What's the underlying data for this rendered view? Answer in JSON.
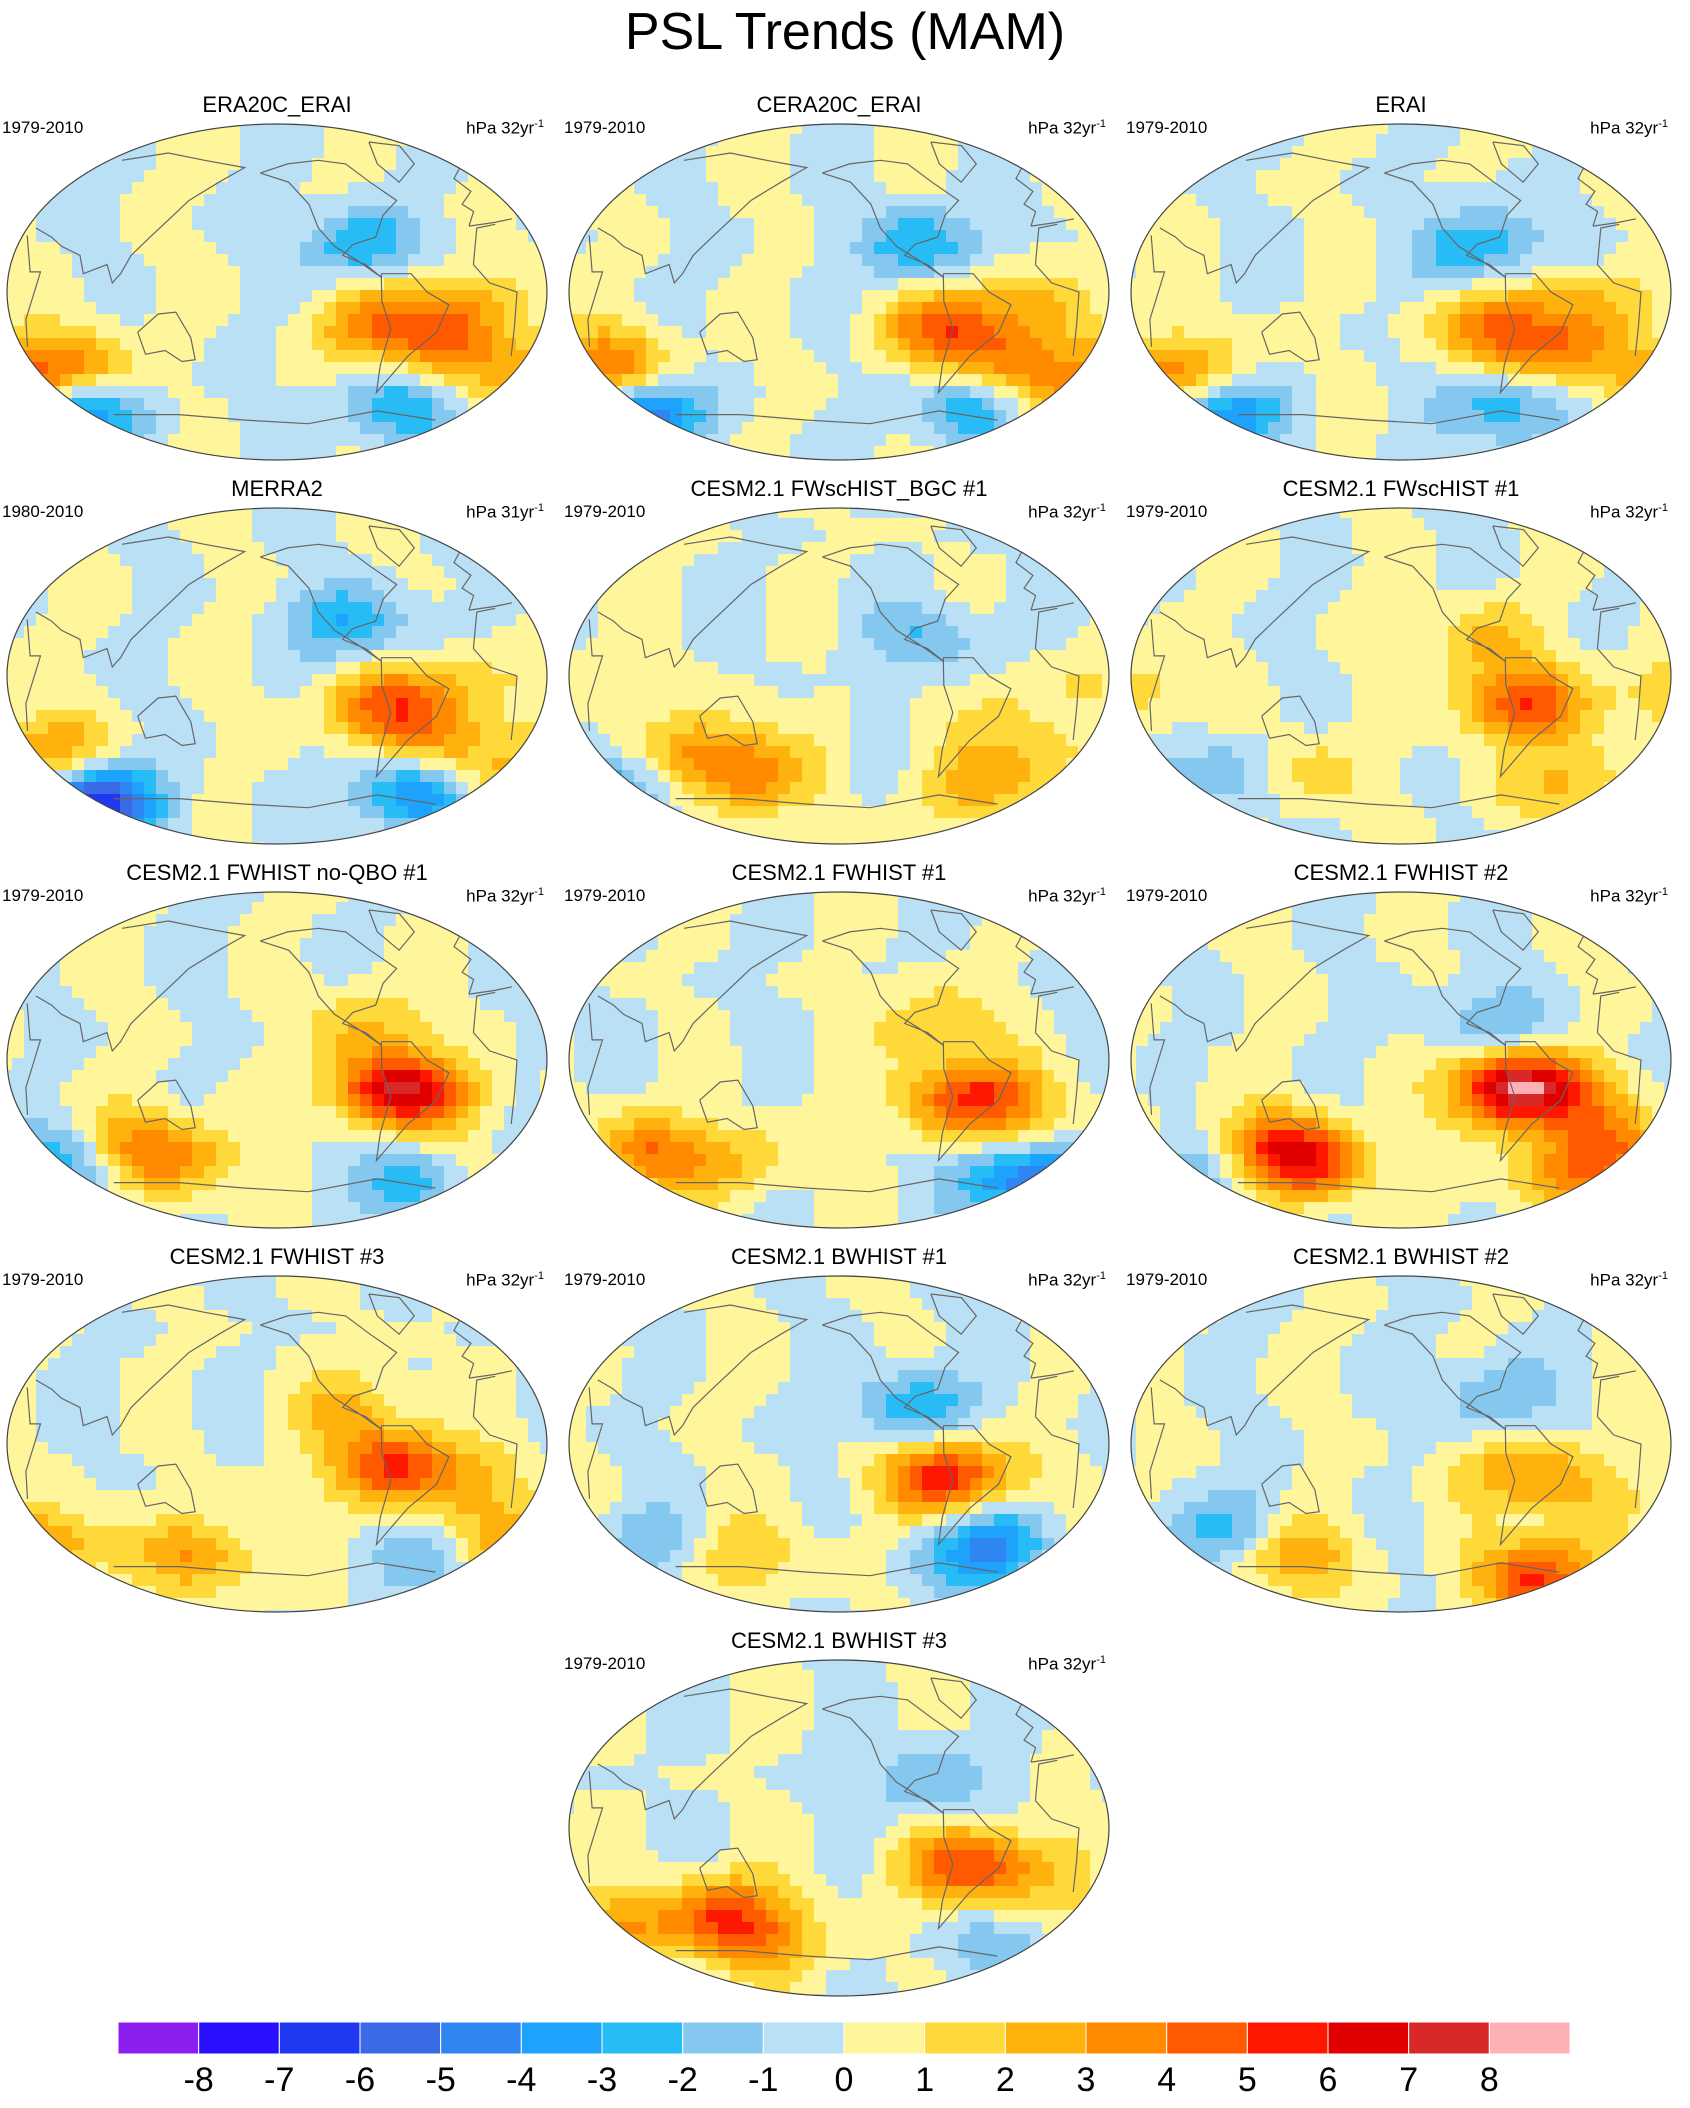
{
  "title": "PSL Trends (MAM)",
  "chart_data": [
    {
      "type": "heatmap",
      "title": "ERA20C_ERAI",
      "period": "1979-2010",
      "units": "hPa 32yr",
      "units_exp": "-1",
      "pattern": [
        [
          -95,
          25,
          -3
        ],
        [
          -35,
          -8,
          3
        ],
        [
          -85,
          -18,
          3
        ],
        [
          -40,
          -32,
          3
        ],
        [
          70,
          -40,
          4
        ],
        [
          30,
          -50,
          2.5
        ],
        [
          -70,
          -62,
          -3
        ],
        [
          80,
          -65,
          -4
        ]
      ]
    },
    {
      "type": "heatmap",
      "title": "CERA20C_ERAI",
      "period": "1979-2010",
      "units": "hPa 32yr",
      "units_exp": "-1",
      "pattern": [
        [
          -95,
          25,
          -3
        ],
        [
          -30,
          -5,
          2
        ],
        [
          -80,
          -20,
          4
        ],
        [
          -40,
          -35,
          3
        ],
        [
          60,
          -40,
          4
        ],
        [
          0,
          -55,
          3
        ],
        [
          -60,
          -62,
          -3
        ],
        [
          80,
          -65,
          -5
        ]
      ]
    },
    {
      "type": "heatmap",
      "title": "ERAI",
      "period": "1979-2010",
      "units": "hPa 32yr",
      "units_exp": "-1",
      "pattern": [
        [
          -95,
          25,
          -3
        ],
        [
          -25,
          -5,
          2
        ],
        [
          -85,
          -20,
          4
        ],
        [
          -40,
          -33,
          3
        ],
        [
          70,
          -42,
          3
        ],
        [
          20,
          -50,
          2
        ],
        [
          -80,
          -62,
          -3
        ],
        [
          90,
          -65,
          -4
        ]
      ]
    },
    {
      "type": "heatmap",
      "title": "MERRA2",
      "period": "1980-2010",
      "units": "hPa 31yr",
      "units_exp": "-1",
      "pattern": [
        [
          -100,
          28,
          -3
        ],
        [
          -35,
          -5,
          2
        ],
        [
          -80,
          -18,
          4
        ],
        [
          -40,
          -35,
          2
        ],
        [
          60,
          -40,
          3
        ],
        [
          0,
          -55,
          2
        ],
        [
          -60,
          -63,
          -4
        ],
        [
          90,
          -68,
          -7
        ]
      ]
    },
    {
      "type": "heatmap",
      "title": "CESM2.1 FWscHIST_BGC #1",
      "period": "1979-2010",
      "units": "hPa 32yr",
      "units_exp": "-1",
      "pattern": [
        [
          -90,
          20,
          -2
        ],
        [
          20,
          -5,
          1
        ],
        [
          -50,
          -20,
          1
        ],
        [
          -15,
          -45,
          2
        ],
        [
          120,
          -40,
          3
        ],
        [
          60,
          -60,
          -3
        ],
        [
          -60,
          -60,
          2
        ],
        [
          150,
          -55,
          3
        ]
      ]
    },
    {
      "type": "heatmap",
      "title": "CESM2.1 FWscHIST #1",
      "period": "1979-2010",
      "units": "hPa 32yr",
      "units_exp": "-1",
      "pattern": [
        [
          -95,
          20,
          2
        ],
        [
          30,
          -10,
          2
        ],
        [
          -70,
          -15,
          5
        ],
        [
          -20,
          -55,
          2
        ],
        [
          100,
          -50,
          -2
        ],
        [
          30,
          -60,
          -2
        ],
        [
          -60,
          -62,
          1
        ],
        [
          140,
          -50,
          2
        ]
      ]
    },
    {
      "type": "heatmap",
      "title": "CESM2.1 FWHIST no-QBO #1",
      "period": "1979-2010",
      "units": "hPa 32yr",
      "units_exp": "-1",
      "pattern": [
        [
          -90,
          20,
          2
        ],
        [
          -40,
          -20,
          2
        ],
        [
          -75,
          -15,
          6
        ],
        [
          -30,
          -60,
          1
        ],
        [
          120,
          -45,
          3
        ],
        [
          60,
          -55,
          -3
        ],
        [
          -60,
          -65,
          -3
        ],
        [
          150,
          -55,
          2
        ]
      ]
    },
    {
      "type": "heatmap",
      "title": "CESM2.1 FWHIST #1",
      "period": "1979-2010",
      "units": "hPa 32yr",
      "units_exp": "-1",
      "pattern": [
        [
          -85,
          20,
          2
        ],
        [
          -40,
          -20,
          2
        ],
        [
          -70,
          -20,
          4
        ],
        [
          -20,
          -45,
          2
        ],
        [
          80,
          -50,
          4
        ],
        [
          20,
          -60,
          -3
        ],
        [
          -30,
          -62,
          -5
        ],
        [
          140,
          -55,
          2
        ]
      ]
    },
    {
      "type": "heatmap",
      "title": "CESM2.1 FWHIST #2",
      "period": "1979-2010",
      "units": "hPa 32yr",
      "units_exp": "-1",
      "pattern": [
        [
          -90,
          20,
          -2
        ],
        [
          -30,
          -20,
          2
        ],
        [
          -75,
          -15,
          8
        ],
        [
          -10,
          -45,
          3
        ],
        [
          120,
          -45,
          3
        ],
        [
          70,
          -60,
          -2
        ],
        [
          -40,
          -62,
          3
        ],
        [
          150,
          -55,
          5
        ]
      ]
    },
    {
      "type": "heatmap",
      "title": "CESM2.1 FWHIST #3",
      "period": "1979-2010",
      "units": "hPa 32yr",
      "units_exp": "-1",
      "pattern": [
        [
          -100,
          20,
          2
        ],
        [
          -20,
          -20,
          2
        ],
        [
          -75,
          -12,
          5
        ],
        [
          -10,
          -50,
          1
        ],
        [
          60,
          -55,
          3
        ],
        [
          10,
          -58,
          2
        ],
        [
          -40,
          -62,
          -2
        ],
        [
          160,
          -60,
          3
        ]
      ]
    },
    {
      "type": "heatmap",
      "title": "CESM2.1 BWHIST #1",
      "period": "1979-2010",
      "units": "hPa 32yr",
      "units_exp": "-1",
      "pattern": [
        [
          -100,
          20,
          -3
        ],
        [
          -60,
          -15,
          2
        ],
        [
          -85,
          -18,
          4
        ],
        [
          -40,
          -55,
          -3
        ],
        [
          80,
          -55,
          -2
        ],
        [
          20,
          -65,
          2
        ],
        [
          -60,
          -60,
          -2
        ],
        [
          150,
          -60,
          2
        ]
      ]
    },
    {
      "type": "heatmap",
      "title": "CESM2.1 BWHIST #2",
      "period": "1979-2010",
      "units": "hPa 32yr",
      "units_exp": "-1",
      "pattern": [
        [
          -90,
          25,
          -2
        ],
        [
          -40,
          -20,
          2
        ],
        [
          -80,
          -15,
          2
        ],
        [
          -20,
          -50,
          1
        ],
        [
          100,
          -45,
          -2
        ],
        [
          40,
          -60,
          -2
        ],
        [
          -60,
          -72,
          5
        ],
        [
          140,
          -60,
          3
        ]
      ]
    },
    {
      "type": "heatmap",
      "title": "CESM2.1 BWHIST #3",
      "period": "1979-2010",
      "units": "hPa 32yr",
      "units_exp": "-1",
      "pattern": [
        [
          -90,
          25,
          -2
        ],
        [
          -40,
          -20,
          3
        ],
        [
          -75,
          -20,
          3
        ],
        [
          -20,
          -45,
          1
        ],
        [
          130,
          -45,
          4
        ],
        [
          60,
          -55,
          3
        ],
        [
          -40,
          -60,
          -2
        ],
        [
          160,
          -60,
          3
        ]
      ]
    }
  ],
  "colorbar": {
    "labels": [
      "-8",
      "-7",
      "-6",
      "-5",
      "-4",
      "-3",
      "-2",
      "-1",
      "0",
      "1",
      "2",
      "3",
      "4",
      "5",
      "6",
      "7",
      "8"
    ],
    "levels": [
      -8,
      -7,
      -6,
      -5,
      -4,
      -3,
      -2,
      -1,
      0,
      1,
      2,
      3,
      4,
      5,
      6,
      7,
      8
    ],
    "colors": [
      "#8c1ef0",
      "#2a10ff",
      "#2038f0",
      "#3a6ae6",
      "#2f86f2",
      "#1ea3fc",
      "#28bcf6",
      "#84c8ef",
      "#b9e0f5",
      "#fff59b",
      "#ffd83a",
      "#ffb20e",
      "#ff8a00",
      "#ff5a00",
      "#ff1800",
      "#e00000",
      "#d82828",
      "#ffb0b4"
    ]
  }
}
